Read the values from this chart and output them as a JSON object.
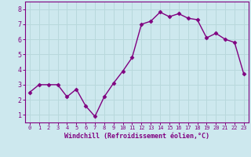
{
  "x": [
    0,
    1,
    2,
    3,
    4,
    5,
    6,
    7,
    8,
    9,
    10,
    11,
    12,
    13,
    14,
    15,
    16,
    17,
    18,
    19,
    20,
    21,
    22,
    23
  ],
  "y": [
    2.5,
    3.0,
    3.0,
    3.0,
    2.2,
    2.7,
    1.6,
    0.9,
    2.2,
    3.1,
    3.9,
    4.8,
    7.0,
    7.2,
    7.8,
    7.5,
    7.7,
    7.4,
    7.3,
    6.1,
    6.4,
    6.0,
    5.8,
    3.7
  ],
  "line_color": "#800080",
  "marker": "D",
  "markersize": 2.5,
  "linewidth": 1.0,
  "bg_color": "#cde8ee",
  "grid_color": "#b0d8e0",
  "xlabel": "Windchill (Refroidissement éolien,°C)",
  "ylabel": "",
  "xlim": [
    -0.5,
    23.5
  ],
  "ylim": [
    0.5,
    8.5
  ],
  "xticks": [
    0,
    1,
    2,
    3,
    4,
    5,
    6,
    7,
    8,
    9,
    10,
    11,
    12,
    13,
    14,
    15,
    16,
    17,
    18,
    19,
    20,
    21,
    22,
    23
  ],
  "yticks": [
    1,
    2,
    3,
    4,
    5,
    6,
    7,
    8
  ],
  "tick_color": "#800080",
  "label_color": "#800080",
  "spine_color": "#800080",
  "grid_line_color": "#aacccc"
}
